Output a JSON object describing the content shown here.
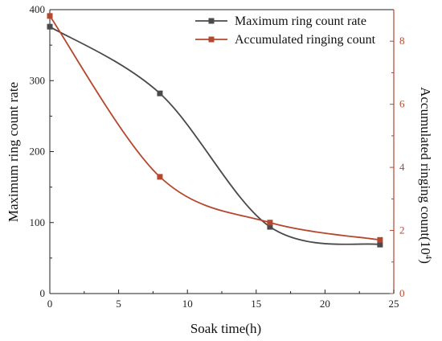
{
  "chart_data": {
    "type": "line",
    "title": "",
    "xlabel": "Soak time(h)",
    "ylabel": "Maximum ring count rate",
    "y2label_main": "Accumulated ringing count(10",
    "y2label_sup": "4",
    "y2label_close": ")",
    "xlim": [
      0,
      25
    ],
    "ylim": [
      0,
      400
    ],
    "y2lim": [
      0,
      9
    ],
    "xticks": [
      0,
      5,
      10,
      15,
      20,
      25
    ],
    "yticks": [
      0,
      100,
      200,
      300,
      400
    ],
    "y2ticks": [
      0,
      2,
      4,
      6,
      8
    ],
    "legend_position": "top-right",
    "series": [
      {
        "name": "Maximum ring count rate",
        "axis": "left",
        "color": "#4a4a4a",
        "marker": "square",
        "x": [
          0,
          8,
          16,
          24
        ],
        "y": [
          376,
          282,
          94,
          69
        ]
      },
      {
        "name": "Accumulated ringing count",
        "axis": "right",
        "color": "#b5472e",
        "marker": "square",
        "x": [
          0,
          8,
          16,
          24
        ],
        "y": [
          8.8,
          3.7,
          2.25,
          1.7
        ]
      }
    ]
  }
}
